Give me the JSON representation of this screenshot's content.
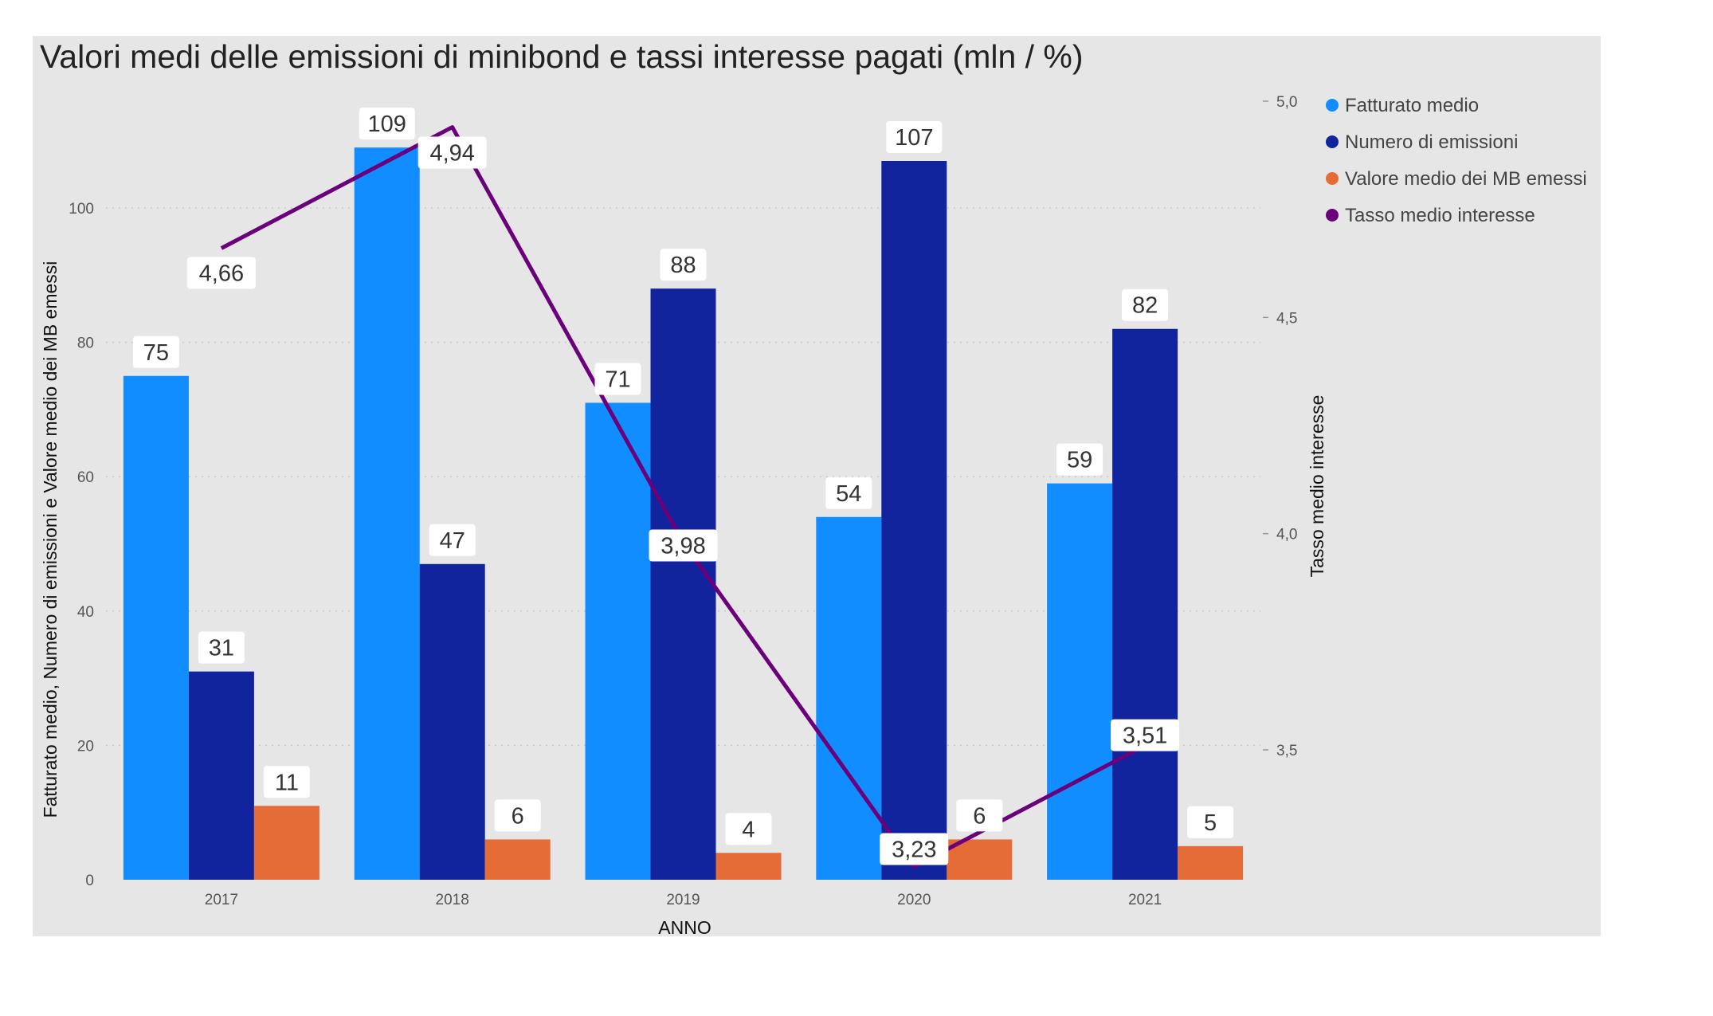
{
  "chart_data": {
    "type": "bar",
    "title": "Valori medi delle emissioni di minibond e tassi interesse pagati (mln / %)",
    "categories": [
      "2017",
      "2018",
      "2019",
      "2020",
      "2021"
    ],
    "xlabel": "ANNO",
    "ylabel": "Fatturato medio, Numero di emissioni e Valore medio dei MB emessi",
    "ylabel_right": "Tasso medio interesse",
    "ylim": [
      0,
      110
    ],
    "y_ticks": [
      "0",
      "20",
      "40",
      "60",
      "80",
      "100"
    ],
    "y_tick_values": [
      0,
      20,
      40,
      60,
      80,
      100
    ],
    "ylim_right": [
      3.2,
      5.0
    ],
    "y_right_ticks": [
      "3,5",
      "4,0",
      "4,5",
      "5,0"
    ],
    "y_right_tick_values": [
      3.5,
      4.0,
      4.5,
      5.0
    ],
    "gridlines": true,
    "legend_position": "top-right",
    "series": [
      {
        "name": "Fatturato medio",
        "kind": "bar",
        "axis": "left",
        "color": "#118dff",
        "values": [
          75,
          109,
          71,
          54,
          59
        ],
        "labels": [
          "75",
          "109",
          "71",
          "54",
          "59"
        ]
      },
      {
        "name": "Numero di emissioni",
        "kind": "bar",
        "axis": "left",
        "color": "#12239e",
        "values": [
          31,
          47,
          88,
          107,
          82
        ],
        "labels": [
          "31",
          "47",
          "88",
          "107",
          "82"
        ]
      },
      {
        "name": "Valore medio dei MB emessi",
        "kind": "bar",
        "axis": "left",
        "color": "#e66c37",
        "values": [
          11,
          6,
          4,
          6,
          5
        ],
        "labels": [
          "11",
          "6",
          "4",
          "6",
          "5"
        ]
      },
      {
        "name": "Tasso medio interesse",
        "kind": "line",
        "axis": "right",
        "color": "#6b007b",
        "values": [
          4.66,
          4.94,
          3.98,
          3.23,
          3.51
        ],
        "labels": [
          "4,66",
          "4,94",
          "3,98",
          "3,23",
          "3,51"
        ]
      }
    ]
  }
}
